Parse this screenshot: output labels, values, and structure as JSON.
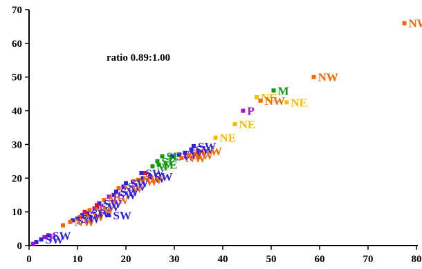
{
  "chart_data": {
    "type": "scatter",
    "title": "",
    "xlabel": "",
    "ylabel": "",
    "xlim": [
      0,
      80
    ],
    "ylim": [
      0,
      70
    ],
    "x_ticks": [
      "0",
      "10",
      "20",
      "30",
      "40",
      "50",
      "60",
      "70",
      "80"
    ],
    "y_ticks": [
      "0",
      "10",
      "20",
      "30",
      "40",
      "50",
      "60",
      "70"
    ],
    "grid": false,
    "annotation": "ratio 0.89:1.00",
    "colors": {
      "NW": "#ff6600",
      "NE": "#ffbb00",
      "M": "#119911",
      "P": "#aa11cc",
      "SE": "#119911",
      "SW": "#3322dd",
      "RED": "#dd1133"
    },
    "points": [
      {
        "x": 77.5,
        "y": 66.0,
        "label": "NW",
        "group": "NW"
      },
      {
        "x": 58.8,
        "y": 50.0,
        "label": "NW",
        "group": "NW"
      },
      {
        "x": 53.2,
        "y": 42.5,
        "label": "NE",
        "group": "NE"
      },
      {
        "x": 50.5,
        "y": 46.0,
        "label": "M",
        "group": "M"
      },
      {
        "x": 47.0,
        "y": 44.0,
        "label": "NE",
        "group": "NE"
      },
      {
        "x": 47.8,
        "y": 43.0,
        "label": "NW",
        "group": "NW"
      },
      {
        "x": 44.2,
        "y": 40.0,
        "label": "P",
        "group": "P"
      },
      {
        "x": 42.5,
        "y": 36.0,
        "label": "NE",
        "group": "NE"
      },
      {
        "x": 38.5,
        "y": 32.0,
        "label": "NE",
        "group": "NE"
      },
      {
        "x": 34.0,
        "y": 29.5,
        "label": "SW",
        "group": "SW"
      },
      {
        "x": 34.8,
        "y": 28.0,
        "label": "NW",
        "group": "NW"
      },
      {
        "x": 33.5,
        "y": 28.5,
        "label": "SW",
        "group": "SW"
      },
      {
        "x": 32.2,
        "y": 27.5,
        "label": "SW",
        "group": "SW"
      },
      {
        "x": 31.0,
        "y": 27.0,
        "label": "SW",
        "group": "SW"
      },
      {
        "x": 29.5,
        "y": 26.5,
        "label": "SW",
        "group": "SW"
      },
      {
        "x": 33.0,
        "y": 26.8,
        "label": "NW",
        "group": "NW"
      },
      {
        "x": 31.5,
        "y": 26.0,
        "label": "NW",
        "group": "NW"
      },
      {
        "x": 27.5,
        "y": 26.5,
        "label": "SE",
        "group": "SE"
      },
      {
        "x": 26.5,
        "y": 25.0,
        "label": "SE",
        "group": "SE"
      },
      {
        "x": 26.8,
        "y": 24.0,
        "label": "SE",
        "group": "SE"
      },
      {
        "x": 25.5,
        "y": 23.5,
        "label": "M",
        "group": "M"
      },
      {
        "x": 25.0,
        "y": 20.5,
        "label": "SW",
        "group": "SW"
      },
      {
        "x": 23.5,
        "y": 20.0,
        "label": "SW",
        "group": "SW"
      },
      {
        "x": 23.2,
        "y": 21.5,
        "label": "SW",
        "group": "SW"
      },
      {
        "x": 22.5,
        "y": 19.5,
        "label": "NW",
        "group": "NW"
      },
      {
        "x": 21.5,
        "y": 19.0,
        "label": "NW",
        "group": "NW"
      },
      {
        "x": 20.0,
        "y": 18.5,
        "label": "SW",
        "group": "SW"
      },
      {
        "x": 19.5,
        "y": 17.5,
        "label": "SW",
        "group": "SW"
      },
      {
        "x": 18.5,
        "y": 17.0,
        "label": "NW",
        "group": "NW"
      },
      {
        "x": 18.0,
        "y": 16.0,
        "label": "SW",
        "group": "SW"
      },
      {
        "x": 17.5,
        "y": 15.0,
        "label": "SW",
        "group": "SW"
      },
      {
        "x": 16.5,
        "y": 14.5,
        "label": "P",
        "group": "P"
      },
      {
        "x": 16.5,
        "y": 9.0,
        "label": "SW",
        "group": "SW"
      },
      {
        "x": 15.5,
        "y": 13.5,
        "label": "NW",
        "group": "NW"
      },
      {
        "x": 14.5,
        "y": 12.5,
        "label": "SW",
        "group": "SW"
      },
      {
        "x": 14.0,
        "y": 11.5,
        "label": "SW",
        "group": "SW"
      },
      {
        "x": 13.5,
        "y": 11.0,
        "label": "P",
        "group": "P"
      },
      {
        "x": 12.5,
        "y": 10.5,
        "label": "NW",
        "group": "NW"
      },
      {
        "x": 12.0,
        "y": 9.5,
        "label": "SW",
        "group": "SW"
      },
      {
        "x": 11.0,
        "y": 9.0,
        "label": "SW",
        "group": "SW"
      },
      {
        "x": 10.5,
        "y": 8.5,
        "label": "NW",
        "group": "NW"
      },
      {
        "x": 10.0,
        "y": 8.0,
        "label": "SW",
        "group": "SW"
      },
      {
        "x": 9.0,
        "y": 7.5,
        "label": "SW",
        "group": "SW"
      },
      {
        "x": 8.5,
        "y": 7.0,
        "label": "NW",
        "group": "NW"
      },
      {
        "x": 7.0,
        "y": 6.0,
        "label": "",
        "group": "NW"
      },
      {
        "x": 4.0,
        "y": 3.0,
        "label": "SW",
        "group": "SW"
      },
      {
        "x": 3.2,
        "y": 2.5,
        "label": "P",
        "group": "P"
      },
      {
        "x": 2.5,
        "y": 1.8,
        "label": "SW",
        "group": "SW"
      },
      {
        "x": 1.5,
        "y": 1.0,
        "label": "",
        "group": "SW"
      },
      {
        "x": 0.8,
        "y": 0.5,
        "label": "",
        "group": "P"
      },
      {
        "x": 11.5,
        "y": 10.0,
        "label": "",
        "group": "RED"
      },
      {
        "x": 14.0,
        "y": 12.0,
        "label": "",
        "group": "RED"
      },
      {
        "x": 24.0,
        "y": 21.5,
        "label": "",
        "group": "RED"
      }
    ]
  }
}
